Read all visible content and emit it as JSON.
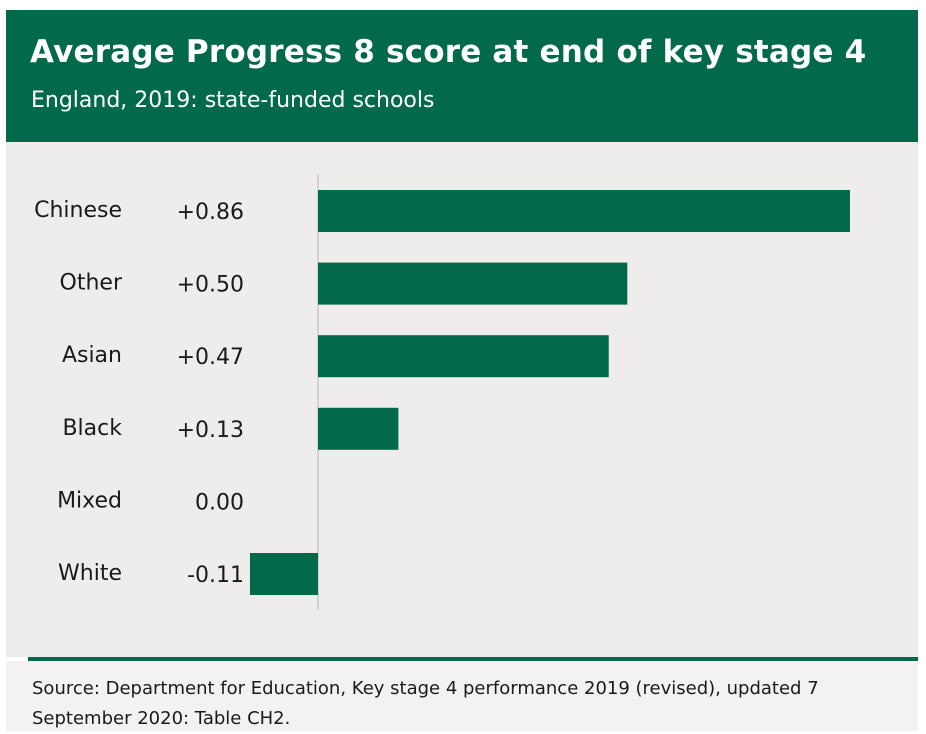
{
  "header": {
    "title": "Average Progress 8 score at end of key stage 4",
    "subtitle": "England, 2019: state-funded schools"
  },
  "chart_data": {
    "type": "bar",
    "orientation": "horizontal",
    "title": "Average Progress 8 score at end of key stage 4",
    "subtitle": "England, 2019: state-funded schools",
    "xlabel": "",
    "ylabel": "",
    "categories": [
      "Chinese",
      "Other",
      "Asian",
      "Black",
      "Mixed",
      "White"
    ],
    "values": [
      0.86,
      0.5,
      0.47,
      0.13,
      0.0,
      -0.11
    ],
    "value_labels": [
      "+0.86",
      "+0.50",
      "+0.47",
      "+0.13",
      "0.00",
      "-0.11"
    ],
    "xlim": [
      -0.11,
      0.86
    ],
    "grid": false,
    "legend": "none",
    "bar_color": "#02694a",
    "background_color": "#efedeb"
  },
  "source": {
    "text": "Source: Department for Education, Key stage 4 performance 2019 (revised), updated 7 September 2020: Table CH2."
  }
}
